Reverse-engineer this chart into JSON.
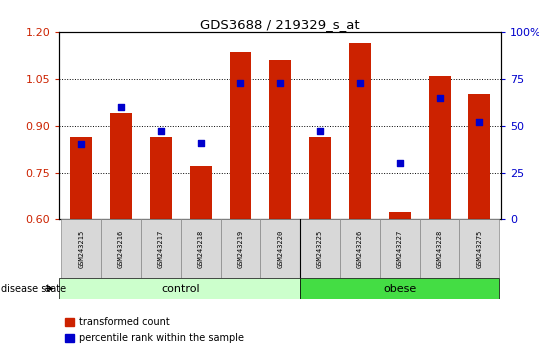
{
  "title": "GDS3688 / 219329_s_at",
  "samples": [
    "GSM243215",
    "GSM243216",
    "GSM243217",
    "GSM243218",
    "GSM243219",
    "GSM243220",
    "GSM243225",
    "GSM243226",
    "GSM243227",
    "GSM243228",
    "GSM243275"
  ],
  "transformed_count": [
    0.865,
    0.94,
    0.865,
    0.77,
    1.135,
    1.11,
    0.865,
    1.165,
    0.625,
    1.06,
    1.0
  ],
  "percentile_rank": [
    40,
    60,
    47,
    41,
    73,
    73,
    47,
    73,
    30,
    65,
    52
  ],
  "ylim_left": [
    0.6,
    1.2
  ],
  "ylim_right": [
    0,
    100
  ],
  "yticks_left": [
    0.6,
    0.75,
    0.9,
    1.05,
    1.2
  ],
  "yticks_right": [
    0,
    25,
    50,
    75,
    100
  ],
  "yticklabels_right": [
    "0",
    "25",
    "50",
    "75",
    "100%"
  ],
  "bar_color": "#cc2200",
  "dot_color": "#0000cc",
  "control_color": "#ccffcc",
  "obese_color": "#44dd44",
  "control_indices": [
    0,
    1,
    2,
    3,
    4,
    5
  ],
  "obese_indices": [
    6,
    7,
    8,
    9,
    10
  ],
  "control_label": "control",
  "obese_label": "obese",
  "disease_state_label": "disease state",
  "legend_transformed": "transformed count",
  "legend_percentile": "percentile rank within the sample",
  "bar_width": 0.55,
  "dot_size": 22,
  "base_value": 0.6,
  "plot_bg": "#ffffff"
}
